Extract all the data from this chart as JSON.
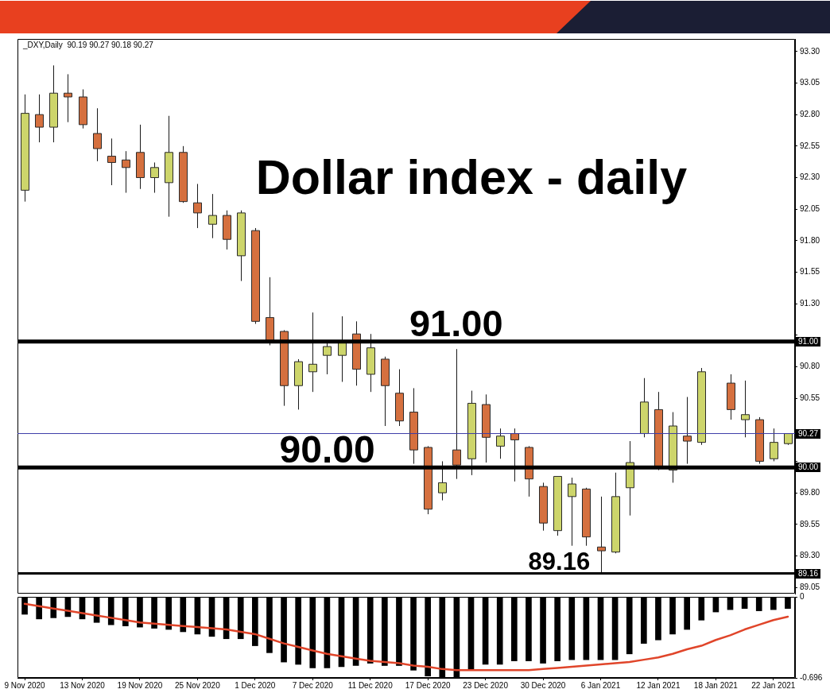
{
  "chart_data": [
    {
      "type": "candlestick",
      "title": "Dollar index - daily",
      "categories": [
        null,
        null,
        null,
        null,
        null,
        null,
        null,
        null,
        null,
        null,
        null,
        null,
        null,
        null,
        null,
        null,
        null,
        null,
        null,
        null,
        null,
        null,
        null,
        null,
        null,
        null,
        null,
        null,
        null,
        null,
        null,
        null,
        null,
        null,
        null,
        null,
        null,
        null,
        null,
        null,
        null,
        null,
        null,
        null,
        null,
        null,
        null,
        null,
        null,
        null,
        null,
        null,
        null,
        null
      ],
      "ohlc": [
        [
          92.2,
          92.96,
          92.11,
          92.81
        ],
        [
          92.8,
          92.96,
          92.58,
          92.7
        ],
        [
          92.7,
          93.19,
          92.58,
          92.97
        ],
        [
          92.97,
          93.12,
          92.74,
          92.94
        ],
        [
          92.94,
          93.0,
          92.69,
          92.72
        ],
        [
          92.65,
          92.85,
          92.43,
          92.53
        ],
        [
          92.47,
          92.61,
          92.24,
          92.42
        ],
        [
          92.44,
          92.51,
          92.18,
          92.38
        ],
        [
          92.5,
          92.72,
          92.21,
          92.3
        ],
        [
          92.3,
          92.42,
          92.18,
          92.38
        ],
        [
          92.26,
          92.79,
          91.99,
          92.5
        ],
        [
          92.5,
          92.55,
          92.1,
          92.11
        ],
        [
          92.1,
          92.25,
          91.9,
          92.02
        ],
        [
          91.93,
          92.17,
          91.82,
          92.0
        ],
        [
          92.0,
          92.04,
          91.73,
          91.81
        ],
        [
          91.68,
          92.04,
          91.48,
          92.02
        ],
        [
          91.88,
          91.9,
          91.14,
          91.16
        ],
        [
          91.19,
          91.51,
          90.97,
          90.99
        ],
        [
          91.08,
          91.09,
          90.49,
          90.65
        ],
        [
          90.65,
          90.86,
          90.46,
          90.84
        ],
        [
          90.76,
          91.23,
          90.6,
          90.82
        ],
        [
          90.89,
          90.99,
          90.74,
          90.96
        ],
        [
          90.89,
          91.2,
          90.68,
          90.99
        ],
        [
          91.06,
          91.16,
          90.65,
          90.78
        ],
        [
          90.74,
          91.06,
          90.6,
          90.95
        ],
        [
          90.86,
          90.88,
          90.33,
          90.65
        ],
        [
          90.59,
          90.78,
          90.33,
          90.37
        ],
        [
          90.44,
          90.63,
          90.03,
          90.14
        ],
        [
          90.16,
          90.17,
          89.63,
          89.67
        ],
        [
          89.8,
          90.05,
          89.74,
          89.88
        ],
        [
          90.14,
          90.94,
          89.91,
          90.02
        ],
        [
          90.07,
          90.61,
          89.94,
          90.51
        ],
        [
          90.5,
          90.58,
          90.04,
          90.24
        ],
        [
          90.17,
          90.31,
          90.07,
          90.25
        ],
        [
          90.27,
          90.31,
          89.89,
          90.22
        ],
        [
          90.16,
          90.17,
          89.77,
          89.91
        ],
        [
          89.85,
          89.88,
          89.5,
          89.56
        ],
        [
          89.5,
          89.93,
          89.46,
          89.93
        ],
        [
          89.77,
          89.92,
          89.38,
          89.87
        ],
        [
          89.83,
          89.84,
          89.38,
          89.45
        ],
        [
          89.37,
          89.77,
          89.16,
          89.34
        ],
        [
          89.33,
          89.96,
          89.32,
          89.77
        ],
        [
          89.84,
          90.21,
          89.62,
          90.04
        ],
        [
          90.27,
          90.71,
          90.24,
          90.52
        ],
        [
          90.46,
          90.6,
          89.98,
          90.0
        ],
        [
          89.98,
          90.44,
          89.88,
          90.33
        ],
        [
          90.25,
          90.56,
          90.03,
          90.21
        ],
        [
          90.2,
          90.79,
          90.18,
          90.76
        ],
        null,
        [
          90.67,
          90.74,
          90.38,
          90.46
        ],
        [
          90.38,
          90.69,
          90.24,
          90.42
        ],
        [
          90.38,
          90.4,
          90.03,
          90.05
        ],
        [
          90.07,
          90.31,
          90.05,
          90.2
        ],
        [
          90.19,
          90.27,
          90.18,
          90.27
        ]
      ],
      "colors": [
        "#cdd56b",
        "#d5703f",
        "#cdd56b",
        "#d5703f",
        "#d5703f",
        "#d5703f",
        "#d5703f",
        "#d5703f",
        "#d5703f",
        "#cdd56b",
        "#cdd56b",
        "#d5703f",
        "#d5703f",
        "#cdd56b",
        "#d5703f",
        "#cdd56b",
        "#d5703f",
        "#d5703f",
        "#d5703f",
        "#cdd56b",
        "#cdd56b",
        "#cdd56b",
        "#cdd56b",
        "#d5703f",
        "#cdd56b",
        "#d5703f",
        "#d5703f",
        "#d5703f",
        "#d5703f",
        "#cdd56b",
        "#d5703f",
        "#cdd56b",
        "#d5703f",
        "#cdd56b",
        "#d5703f",
        "#d5703f",
        "#d5703f",
        "#cdd56b",
        "#cdd56b",
        "#d5703f",
        "#d5703f",
        "#cdd56b",
        "#cdd56b",
        "#cdd56b",
        "#d5703f",
        "#cdd56b",
        "#d5703f",
        "#cdd56b",
        null,
        "#d5703f",
        "#cdd56b",
        "#d5703f",
        "#cdd56b",
        "#cdd56b"
      ],
      "ylim": [
        89.0,
        93.4
      ],
      "yticks": [
        89.05,
        {
          "value": 89.3,
          "label": "89.30"
        },
        89.55,
        {
          "value": 89.8,
          "label": "89.80"
        },
        {
          "value": 90.05,
          "label": null
        },
        {
          "value": 90.3,
          "label": null
        },
        90.55,
        {
          "value": 90.8,
          "label": "90.80"
        },
        {
          "value": 91.05,
          "label": null
        },
        {
          "value": 91.3,
          "label": "91.30"
        },
        91.55,
        {
          "value": 91.8,
          "label": "91.80"
        },
        92.05,
        {
          "value": 92.3,
          "label": "92.30"
        },
        92.55,
        {
          "value": 92.8,
          "label": "92.80"
        },
        93.05,
        {
          "value": 93.3,
          "label": "93.30"
        }
      ],
      "ref_lines": [
        {
          "axis": "y",
          "value": 91.0,
          "label": "91.00",
          "color": "#000000"
        },
        {
          "axis": "y",
          "value": 90.0,
          "label": "90.00",
          "color": "#000000"
        },
        {
          "axis": "y",
          "value": 89.16,
          "label": "89.16",
          "color": "#000000"
        },
        {
          "axis": "y",
          "value": 90.27,
          "label": "90.27",
          "color": "#3c3ca8"
        }
      ],
      "annotations": [
        "_DXY,Daily  90.19 90.27 90.18 90.27",
        {
          "text": "91.00",
          "y": 91.0
        },
        {
          "text": "90.00",
          "y": 90.0
        },
        {
          "text": "89.16",
          "y": 89.16
        }
      ],
      "tick_labels": "y"
    },
    {
      "type": "bar",
      "categories": [
        "9 Nov 2020",
        null,
        null,
        null,
        "13 Nov 2020",
        null,
        null,
        null,
        "19 Nov 2020",
        null,
        null,
        null,
        "25 Nov 2020",
        null,
        null,
        null,
        "1 Dec 2020",
        null,
        null,
        null,
        "7 Dec 2020",
        null,
        null,
        null,
        "11 Dec 2020",
        null,
        null,
        null,
        "17 Dec 2020",
        null,
        null,
        null,
        "23 Dec 2020",
        null,
        null,
        null,
        "30 Dec 2020",
        null,
        null,
        null,
        "6 Jan 2021",
        null,
        null,
        null,
        "12 Jan 2021",
        null,
        null,
        null,
        "18 Jan 2021",
        null,
        null,
        null,
        "22 Jan 2021",
        null
      ],
      "series": [
        {
          "color": "#000000",
          "values": [
            -0.15,
            -0.19,
            -0.18,
            -0.17,
            -0.19,
            -0.22,
            -0.24,
            -0.25,
            -0.26,
            -0.27,
            -0.28,
            -0.3,
            -0.32,
            -0.34,
            -0.36,
            -0.36,
            -0.42,
            -0.48,
            -0.56,
            -0.58,
            -0.61,
            -0.61,
            -0.6,
            -0.59,
            -0.57,
            -0.59,
            -0.59,
            -0.63,
            -0.68,
            -0.69,
            -0.69,
            -0.62,
            -0.58,
            -0.58,
            -0.55,
            -0.55,
            -0.57,
            -0.55,
            -0.54,
            -0.54,
            -0.54,
            -0.54,
            -0.49,
            -0.4,
            -0.37,
            -0.32,
            -0.28,
            -0.2,
            -0.13,
            -0.11,
            -0.1,
            -0.12,
            -0.11,
            -0.1
          ]
        },
        {
          "type": "line",
          "color": "#e0452a",
          "values": [
            -0.06,
            -0.08,
            -0.1,
            -0.12,
            -0.14,
            -0.16,
            -0.18,
            -0.2,
            -0.22,
            -0.23,
            -0.24,
            -0.25,
            -0.26,
            -0.27,
            -0.28,
            -0.3,
            -0.32,
            -0.36,
            -0.4,
            -0.43,
            -0.46,
            -0.49,
            -0.51,
            -0.53,
            -0.55,
            -0.56,
            -0.57,
            -0.59,
            -0.6,
            -0.62,
            -0.63,
            -0.63,
            -0.63,
            -0.63,
            -0.63,
            -0.63,
            -0.62,
            -0.61,
            -0.6,
            -0.59,
            -0.58,
            -0.57,
            -0.56,
            -0.54,
            -0.52,
            -0.49,
            -0.45,
            -0.42,
            -0.37,
            -0.33,
            -0.28,
            -0.24,
            -0.2,
            -0.17
          ]
        }
      ],
      "ylim": [
        -0.696,
        0
      ],
      "yticks": [
        -0.696,
        0
      ]
    }
  ]
}
